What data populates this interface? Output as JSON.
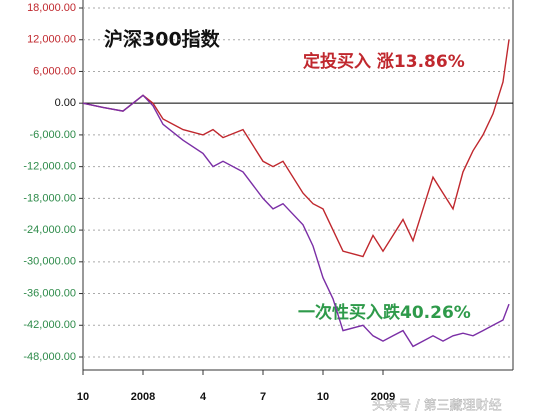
{
  "chart_data": {
    "type": "line",
    "title": "沪深300指数",
    "annotations": [
      "定投买入 涨13.86%",
      "一次性买入跌40.26%"
    ],
    "watermark": "头条号 / 第三藏理财经",
    "x": [
      0,
      1,
      2,
      3,
      3.5,
      4,
      5,
      6,
      6.5,
      7,
      8,
      9,
      9.5,
      10,
      11,
      11.5,
      12,
      12.5,
      13,
      14,
      14.5,
      15,
      15.5,
      16,
      16.5,
      17,
      17.5,
      18,
      18.5,
      19,
      19.5,
      20,
      20.5,
      21,
      21.3
    ],
    "series": [
      {
        "name": "定投买入",
        "color": "#c0282e",
        "values": [
          0,
          -800,
          -1500,
          1500,
          0,
          -3000,
          -5000,
          -6000,
          -5000,
          -6500,
          -5000,
          -11000,
          -12000,
          -11000,
          -17000,
          -19000,
          -20000,
          -24000,
          -28000,
          -29000,
          -25000,
          -28000,
          -25000,
          -22000,
          -26000,
          -20000,
          -14000,
          -17000,
          -20000,
          -13000,
          -9000,
          -6000,
          -2000,
          4000,
          12000
        ]
      },
      {
        "name": "一次性买入",
        "color": "#7b2fa6",
        "values": [
          0,
          -800,
          -1500,
          1500,
          -500,
          -4000,
          -7000,
          -9500,
          -12000,
          -11000,
          -13000,
          -18000,
          -20000,
          -19000,
          -23000,
          -27000,
          -33000,
          -37000,
          -43000,
          -42000,
          -44000,
          -45000,
          -44000,
          -43000,
          -46000,
          -45000,
          -44000,
          -45000,
          -44000,
          -43500,
          -44000,
          -43000,
          -42000,
          -41000,
          -38000
        ]
      }
    ],
    "xlim": [
      0,
      21.5
    ],
    "xticks": [
      {
        "value": 0,
        "label": "10"
      },
      {
        "value": 3,
        "label": "2008"
      },
      {
        "value": 6,
        "label": "4"
      },
      {
        "value": 9,
        "label": "7"
      },
      {
        "value": 12,
        "label": "10"
      },
      {
        "value": 15,
        "label": "2009"
      }
    ],
    "ylim": [
      -48000,
      18000
    ],
    "yticks": [
      {
        "value": 18000,
        "label": "18,000.00"
      },
      {
        "value": 12000,
        "label": "12,000.00"
      },
      {
        "value": 6000,
        "label": "6,000.00"
      },
      {
        "value": 0,
        "label": "0.00"
      },
      {
        "value": -6000,
        "label": "-6,000.00"
      },
      {
        "value": -12000,
        "label": "-12,000.00"
      },
      {
        "value": -18000,
        "label": "-18,000.00"
      },
      {
        "value": -24000,
        "label": "-24,000.00"
      },
      {
        "value": -30000,
        "label": "-30,000.00"
      },
      {
        "value": -36000,
        "label": "-36,000.00"
      },
      {
        "value": -42000,
        "label": "-42,000.00"
      },
      {
        "value": -48000,
        "label": "-48,000.00"
      }
    ],
    "grid": true
  }
}
